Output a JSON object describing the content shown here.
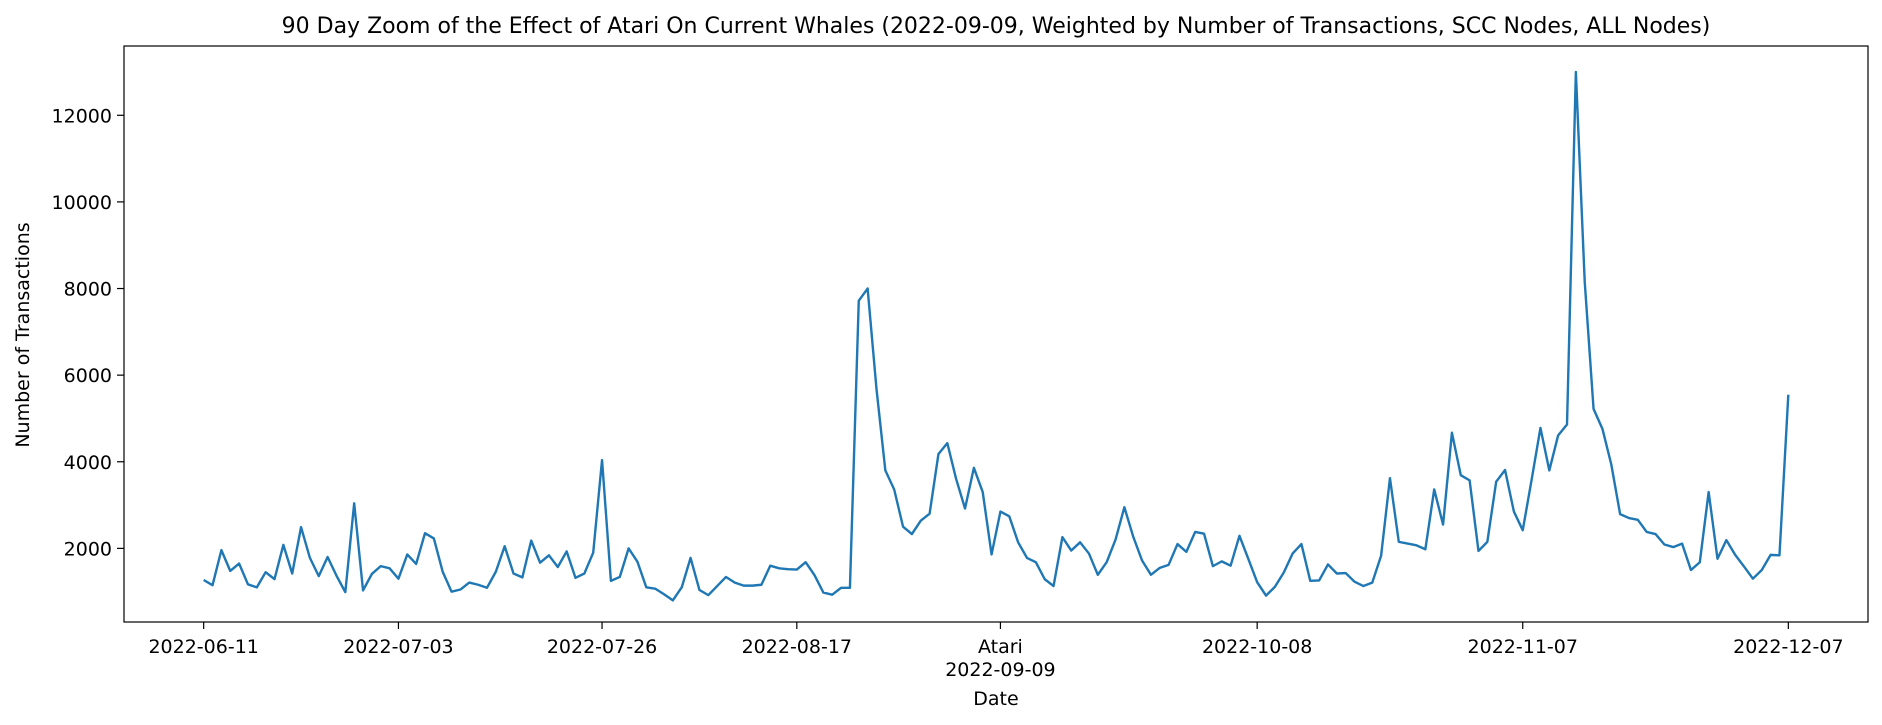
{
  "chart_data": {
    "type": "line",
    "title": "90 Day Zoom of the Effect of Atari On Current Whales (2022-09-09, Weighted by Number of Transactions, SCC Nodes, ALL Nodes)",
    "xlabel": "Date",
    "ylabel": "Number of Transactions",
    "ylim": [
      300,
      13600
    ],
    "xlim": [
      -9,
      188
    ],
    "grid": false,
    "color": "#1f77b4",
    "yticks": [
      2000,
      4000,
      6000,
      8000,
      10000,
      12000
    ],
    "xticks": [
      {
        "x": 0,
        "label": "2022-06-11"
      },
      {
        "x": 22,
        "label": "2022-07-03"
      },
      {
        "x": 45,
        "label": "2022-07-26"
      },
      {
        "x": 67,
        "label": "2022-08-17"
      },
      {
        "x": 90,
        "label": "Atari\n2022-09-09"
      },
      {
        "x": 119,
        "label": "2022-10-08"
      },
      {
        "x": 149,
        "label": "2022-11-07"
      },
      {
        "x": 179,
        "label": "2022-12-07"
      }
    ],
    "x_start_date": "2022-06-11",
    "values": [
      1270,
      1150,
      1960,
      1480,
      1650,
      1170,
      1100,
      1450,
      1290,
      2080,
      1420,
      2490,
      1780,
      1360,
      1800,
      1370,
      990,
      3040,
      1030,
      1410,
      1590,
      1540,
      1300,
      1860,
      1640,
      2350,
      2230,
      1460,
      1000,
      1050,
      1210,
      1160,
      1090,
      1460,
      2050,
      1420,
      1330,
      2180,
      1670,
      1840,
      1570,
      1930,
      1320,
      1420,
      1900,
      4040,
      1250,
      1340,
      2000,
      1690,
      1100,
      1070,
      940,
      800,
      1100,
      1780,
      1040,
      920,
      1130,
      1340,
      1210,
      1140,
      1140,
      1160,
      1600,
      1540,
      1520,
      1510,
      1680,
      1380,
      980,
      930,
      1090,
      1090,
      7720,
      8000,
      5680,
      3800,
      3360,
      2500,
      2330,
      2640,
      2800,
      4180,
      4430,
      3600,
      2920,
      3860,
      3300,
      1860,
      2850,
      2740,
      2140,
      1780,
      1680,
      1290,
      1130,
      2260,
      1950,
      2140,
      1880,
      1390,
      1680,
      2200,
      2950,
      2270,
      1720,
      1390,
      1550,
      1620,
      2100,
      1920,
      2380,
      2340,
      1590,
      1700,
      1600,
      2290,
      1760,
      1220,
      910,
      1110,
      1440,
      1880,
      2100,
      1250,
      1260,
      1630,
      1420,
      1430,
      1230,
      1130,
      1210,
      1830,
      3620,
      2150,
      2110,
      2070,
      1980,
      3360,
      2550,
      4670,
      3690,
      3570,
      1940,
      2150,
      3540,
      3810,
      2850,
      2420,
      3580,
      4780,
      3800,
      4610,
      4860,
      13000,
      8160,
      5220,
      4760,
      3940,
      2790,
      2700,
      2660,
      2380,
      2330,
      2090,
      2030,
      2110,
      1500,
      1680,
      3300,
      1760,
      2190,
      1850,
      1580,
      1300,
      1500,
      1850,
      1840,
      5550
    ]
  }
}
